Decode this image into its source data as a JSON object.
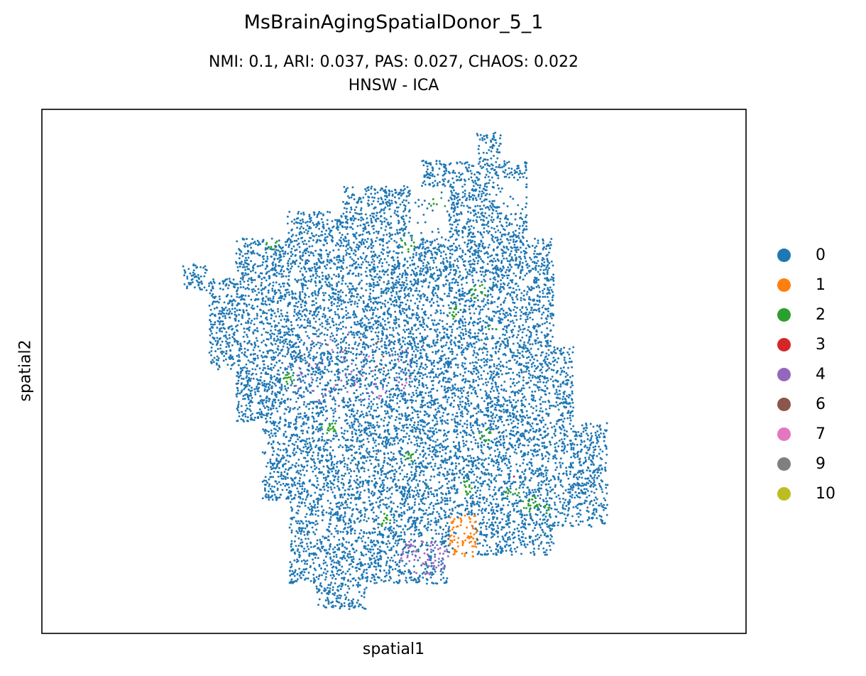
{
  "chart_data": {
    "type": "scatter",
    "title": "MsBrainAgingSpatialDonor_5_1",
    "subtitle_line1": "NMI: 0.1,  ARI: 0.037,  PAS: 0.027,  CHAOS: 0.022",
    "subtitle_line2": "HNSW - ICA",
    "xlabel": "spatial1",
    "ylabel": "spatial2",
    "axis_ticks": "none",
    "grid": false,
    "legend_position": "right",
    "categories": [
      {
        "label": "0",
        "color": "#1f77b4"
      },
      {
        "label": "1",
        "color": "#ff7f0e"
      },
      {
        "label": "2",
        "color": "#2ca02c"
      },
      {
        "label": "3",
        "color": "#d62728"
      },
      {
        "label": "4",
        "color": "#9467bd"
      },
      {
        "label": "6",
        "color": "#8c564b"
      },
      {
        "label": "7",
        "color": "#e377c2"
      },
      {
        "label": "9",
        "color": "#7f7f7f"
      },
      {
        "label": "10",
        "color": "#bcbd22"
      }
    ]
  }
}
